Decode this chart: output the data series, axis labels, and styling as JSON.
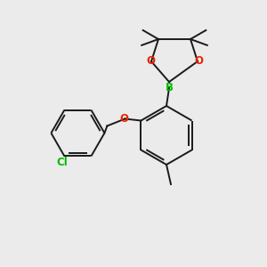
{
  "background_color": "#ebebeb",
  "bond_color": "#1a1a1a",
  "atom_colors": {
    "B": "#00bb00",
    "O": "#ee2200",
    "Cl": "#00bb00",
    "C": "#1a1a1a"
  },
  "figsize": [
    3.0,
    3.0
  ],
  "dpi": 100
}
